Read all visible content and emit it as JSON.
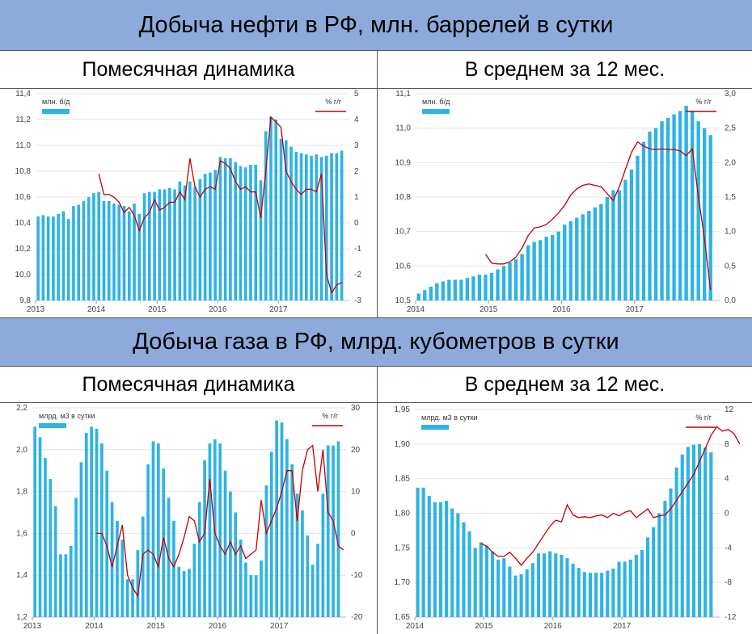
{
  "oil": {
    "title": "Добыча нефти в РФ, млн. баррелей в сутки",
    "left_header": "Помесячная динамика",
    "right_header": "В среднем за 12 мес."
  },
  "gas": {
    "title": "Добыча газа в РФ, млрд. кубометров в сутки",
    "left_header": "Помесячная динамика",
    "right_header": "В среднем за 12 мес."
  },
  "colors": {
    "bar": "#2eb3e4",
    "line": "#c00000",
    "band": "#8eaadb"
  },
  "chart_data": [
    {
      "id": "oil-monthly",
      "type": "bar",
      "legend_bar": "млн. б/д",
      "legend_line": "% г/г",
      "x_start": "2013-01",
      "x_ticks": [
        "2013",
        "2014",
        "2015",
        "2016",
        "2017"
      ],
      "ylim": [
        9.8,
        11.4
      ],
      "yticks": [
        "9,8",
        "10,0",
        "10,2",
        "10,4",
        "10,6",
        "10,8",
        "11,0",
        "11,2",
        "11,4"
      ],
      "y2lim": [
        -3,
        5
      ],
      "y2ticks": [
        "-3",
        "-2",
        "-1",
        "0",
        "1",
        "2",
        "3",
        "4",
        "5"
      ],
      "values": [
        10.45,
        10.46,
        10.45,
        10.45,
        10.47,
        10.49,
        10.43,
        10.53,
        10.54,
        10.57,
        10.6,
        10.63,
        10.64,
        10.57,
        10.57,
        10.55,
        10.54,
        10.53,
        10.49,
        10.55,
        10.47,
        10.63,
        10.64,
        10.64,
        10.66,
        10.66,
        10.67,
        10.66,
        10.72,
        10.69,
        10.72,
        10.68,
        10.74,
        10.78,
        10.79,
        10.81,
        10.91,
        10.9,
        10.9,
        10.87,
        10.84,
        10.83,
        10.85,
        10.85,
        10.73,
        11.11,
        11.22,
        11.2,
        11.05,
        11.04,
        10.99,
        10.95,
        10.94,
        10.93,
        10.92,
        10.93,
        10.91,
        10.92,
        10.94,
        10.94,
        10.96
      ],
      "line_start_index": 12,
      "line": [
        1.9,
        1.1,
        1.1,
        1.0,
        0.8,
        0.4,
        0.6,
        0.3,
        -0.3,
        0.2,
        0.4,
        0.9,
        0.5,
        0.6,
        0.8,
        0.8,
        1.2,
        0.9,
        2.5,
        1.4,
        1.0,
        1.3,
        1.4,
        1.3,
        2.4,
        2.3,
        2.1,
        1.6,
        1.3,
        1.4,
        1.2,
        1.2,
        0.2,
        2.0,
        4.1,
        3.9,
        3.7,
        2.0,
        1.6,
        1.3,
        1.1,
        1.3,
        1.3,
        1.2,
        1.9,
        -2.0,
        -2.7,
        -2.4,
        -2.3
      ]
    },
    {
      "id": "oil-12m",
      "type": "bar",
      "legend_bar": "млн. б/д",
      "legend_line": "% г/г",
      "x_start": "2014-01",
      "x_ticks": [
        "2014",
        "2015",
        "2016",
        "2017"
      ],
      "ylim": [
        10.5,
        11.1
      ],
      "yticks": [
        "10,5",
        "10,6",
        "10,7",
        "10,8",
        "10,9",
        "11,0",
        "11,1"
      ],
      "y2lim": [
        0,
        3
      ],
      "y2ticks": [
        "0,0",
        "0,5",
        "1,0",
        "1,5",
        "2,0",
        "2,5",
        "3,0"
      ],
      "values": [
        10.52,
        10.53,
        10.54,
        10.55,
        10.555,
        10.56,
        10.56,
        10.56,
        10.565,
        10.57,
        10.575,
        10.575,
        10.58,
        10.59,
        10.6,
        10.61,
        10.62,
        10.635,
        10.66,
        10.67,
        10.675,
        10.685,
        10.69,
        10.7,
        10.72,
        10.73,
        10.74,
        10.75,
        10.76,
        10.77,
        10.78,
        10.8,
        10.82,
        10.82,
        10.85,
        10.88,
        10.92,
        10.96,
        10.99,
        11.0,
        11.02,
        11.03,
        11.04,
        11.05,
        11.065,
        11.05,
        11.02,
        11.0,
        10.98
      ],
      "line_start_index": 11,
      "line": [
        0.67,
        0.54,
        0.53,
        0.53,
        0.56,
        0.63,
        0.76,
        0.94,
        1.05,
        1.07,
        1.1,
        1.18,
        1.27,
        1.38,
        1.53,
        1.62,
        1.67,
        1.69,
        1.67,
        1.65,
        1.55,
        1.45,
        1.65,
        1.9,
        2.15,
        2.3,
        2.24,
        2.2,
        2.19,
        2.2,
        2.19,
        2.19,
        2.17,
        2.1,
        2.2,
        1.5,
        0.9,
        0.15
      ]
    },
    {
      "id": "gas-monthly",
      "type": "bar",
      "legend_bar": "млрд. м3 в сутки",
      "legend_line": "% г/г",
      "x_start": "2013-01",
      "x_ticks": [
        "2013",
        "2014",
        "2015",
        "2016",
        "2017"
      ],
      "ylim": [
        1.2,
        2.2
      ],
      "yticks": [
        "1,2",
        "1,4",
        "1,6",
        "1,8",
        "2,0",
        "2,2"
      ],
      "y2lim": [
        -20,
        30
      ],
      "y2ticks": [
        "-20",
        "-10",
        "0",
        "10",
        "20",
        "30"
      ],
      "values": [
        2.11,
        2.06,
        1.96,
        1.86,
        1.73,
        1.5,
        1.5,
        1.54,
        1.77,
        1.94,
        2.08,
        2.11,
        2.1,
        2.03,
        1.9,
        1.75,
        1.66,
        1.57,
        1.38,
        1.38,
        1.52,
        1.68,
        1.93,
        2.04,
        2.03,
        1.91,
        1.77,
        1.66,
        1.44,
        1.42,
        1.43,
        1.55,
        1.75,
        1.95,
        2.03,
        2.05,
        2.03,
        1.9,
        1.8,
        1.7,
        1.57,
        1.46,
        1.4,
        1.4,
        1.47,
        1.83,
        1.99,
        2.14,
        2.13,
        2.05,
        1.93,
        1.79,
        1.71,
        1.59,
        1.45,
        1.55,
        1.79,
        2.02,
        2.02,
        2.04
      ],
      "line_start_index": 12,
      "line": [
        0,
        0,
        -3,
        -8,
        -3,
        2,
        -10,
        -13,
        -15,
        -5,
        -4,
        -5,
        -8,
        -1,
        -6,
        -8,
        -5,
        -1,
        4,
        3,
        -2,
        0,
        13,
        0,
        -3,
        -5,
        -2,
        -5,
        -3,
        -6,
        -5,
        -4,
        8,
        0,
        3,
        6,
        10,
        15,
        15,
        3,
        15,
        20,
        21,
        10,
        20,
        5,
        3,
        -3,
        -4
      ]
    },
    {
      "id": "gas-12m",
      "type": "bar",
      "legend_bar": "млрд. м3 в сутки",
      "legend_line": "% г/г",
      "x_start": "2014-01",
      "x_ticks": [
        "2014",
        "2015",
        "2016",
        "2017"
      ],
      "ylim": [
        1.65,
        1.95
      ],
      "yticks": [
        "1,65",
        "1,70",
        "1,75",
        "1,80",
        "1,85",
        "1,90",
        "1,95"
      ],
      "y2lim": [
        -12,
        12
      ],
      "y2ticks": [
        "-12",
        "-8",
        "-4",
        "0",
        "4",
        "8",
        "12"
      ],
      "values": [
        1.837,
        1.837,
        1.825,
        1.816,
        1.816,
        1.818,
        1.807,
        1.8,
        1.787,
        1.774,
        1.75,
        1.758,
        1.753,
        1.745,
        1.733,
        1.735,
        1.723,
        1.71,
        1.712,
        1.719,
        1.728,
        1.742,
        1.742,
        1.745,
        1.742,
        1.74,
        1.735,
        1.727,
        1.721,
        1.715,
        1.714,
        1.714,
        1.714,
        1.717,
        1.72,
        1.73,
        1.73,
        1.733,
        1.74,
        1.747,
        1.765,
        1.78,
        1.8,
        1.818,
        1.836,
        1.866,
        1.885,
        1.896,
        1.899,
        1.9,
        1.895,
        1.888
      ],
      "line_start_index": 11,
      "line": [
        -3.5,
        -3.8,
        -4.5,
        -5.0,
        -5.0,
        -4.5,
        -5.2,
        -6.0,
        -5.2,
        -4.5,
        -3.5,
        -2.5,
        -1.5,
        -0.8,
        -1.0,
        1.0,
        -0.2,
        -0.5,
        -0.4,
        -0.5,
        -0.3,
        -0.2,
        -0.5,
        0.0,
        -0.3,
        0.1,
        0.3,
        -0.5,
        0.0,
        0.5,
        -0.5,
        -0.3,
        -0.2,
        0.5,
        1.5,
        2.5,
        3.5,
        4.5,
        6.0,
        7.5,
        9.0,
        10.0,
        9.5,
        9.7,
        9.2,
        8.0
      ]
    }
  ]
}
